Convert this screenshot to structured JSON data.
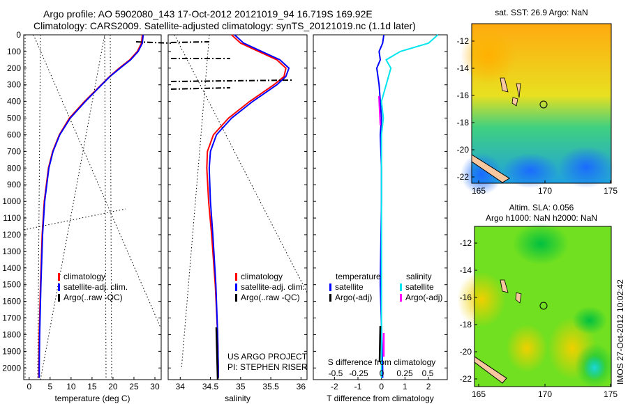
{
  "header": {
    "line1": "Argo profile: AO 5902080_143 17-Oct-2012 20121019_94 16.719S 169.92E",
    "line2": "Climatology: CARS2009. Satellite-adjusted climatology: synTS_20121019.nc (1.1d later)"
  },
  "colors": {
    "clim": "#ff0000",
    "sat": "#0000ff",
    "argo": "#000000",
    "sal_sat": "#00e5ee",
    "sal_argo": "#ff00ff"
  },
  "chart_data": [
    {
      "type": "line",
      "id": "temperature",
      "xlabel": "temperature (deg C)",
      "ylabel": "",
      "xlim": [
        -1.3,
        31.5
      ],
      "ylim": [
        2070,
        0
      ],
      "xticks": [
        "0",
        "5",
        "10",
        "15",
        "20",
        "25",
        "30"
      ],
      "xtick_values": [
        0,
        5,
        10,
        15,
        20,
        25,
        30
      ],
      "yticks": [
        "0",
        "100",
        "200",
        "300",
        "400",
        "500",
        "600",
        "700",
        "800",
        "900",
        "1000",
        "1100",
        "1200",
        "1300",
        "1400",
        "1500",
        "1600",
        "1700",
        "1800",
        "1900",
        "2000"
      ],
      "ytick_values": [
        0,
        100,
        200,
        300,
        400,
        500,
        600,
        700,
        800,
        900,
        1000,
        1100,
        1200,
        1300,
        1400,
        1500,
        1600,
        1700,
        1800,
        1900,
        2000
      ],
      "depth": [
        0,
        50,
        100,
        150,
        200,
        250,
        300,
        400,
        500,
        600,
        700,
        800,
        1000,
        1200,
        1500,
        1800,
        2000,
        2060
      ],
      "series": [
        {
          "name": "climatology",
          "values": [
            27,
            26.8,
            25.8,
            24,
            21.5,
            19.2,
            17.2,
            13.2,
            9.6,
            7.2,
            5.6,
            4.6,
            3.6,
            3.1,
            2.7,
            2.4,
            2.3,
            2.3
          ]
        },
        {
          "name": "satellite-adj. clim.",
          "values": [
            27.2,
            27,
            26,
            24.2,
            21.7,
            19.3,
            17.3,
            13.4,
            9.8,
            7.3,
            5.7,
            4.7,
            3.7,
            3.2,
            2.8,
            2.5,
            2.4,
            2.4
          ]
        },
        {
          "name": "Argo(..raw -QC)",
          "values": []
        }
      ],
      "legend": [
        "climatology",
        "satellite-adj. clim.",
        "Argo(..raw -QC)"
      ],
      "legend_placement": "bottom-center"
    },
    {
      "type": "line",
      "id": "salinity",
      "xlabel": "salinity",
      "xlim": [
        33.8,
        36.1
      ],
      "ylim": [
        2070,
        0
      ],
      "xticks": [
        "34",
        "34.5",
        "35",
        "35.5",
        "36"
      ],
      "xtick_values": [
        34,
        34.5,
        35,
        35.5,
        36
      ],
      "depth": [
        0,
        50,
        100,
        150,
        200,
        250,
        300,
        400,
        500,
        600,
        700,
        800,
        1000,
        1200,
        1500,
        1800,
        2000,
        2060
      ],
      "series": [
        {
          "name": "climatology",
          "values": [
            34.85,
            35.0,
            35.3,
            35.6,
            35.75,
            35.72,
            35.55,
            35.15,
            34.8,
            34.55,
            34.45,
            34.44,
            34.47,
            34.52,
            34.58,
            34.62,
            34.63,
            34.63
          ]
        },
        {
          "name": "satellite-adj. clim.",
          "values": [
            34.9,
            35.05,
            35.35,
            35.65,
            35.8,
            35.75,
            35.6,
            35.2,
            34.85,
            34.6,
            34.5,
            34.48,
            34.5,
            34.54,
            34.59,
            34.62,
            34.63,
            34.63
          ]
        },
        {
          "name": "Argo(..raw -QC)",
          "values": []
        }
      ],
      "legend": [
        "climatology",
        "satellite-adj. clim.",
        "Argo(..raw -QC)"
      ],
      "annotation": [
        "US ARGO PROJECT",
        "PI: STEPHEN RISER"
      ],
      "legend_placement": "bottom-right"
    },
    {
      "type": "line",
      "id": "difference",
      "xlabel": "T difference from climatology",
      "x2label": "S difference from climatology",
      "xlim": [
        -2.9,
        2.8
      ],
      "ylim": [
        2070,
        0
      ],
      "xticks": [
        "-2",
        "-1",
        "0",
        "1",
        "2"
      ],
      "xtick_values": [
        -2,
        -1,
        0,
        1,
        2
      ],
      "x2ticks": [
        "-0.5",
        "-0.25",
        "0",
        "0.25",
        "0.5"
      ],
      "depth": [
        0,
        50,
        100,
        150,
        200,
        300,
        400,
        500,
        600,
        800,
        1000,
        1500,
        2000,
        2060
      ],
      "series": [
        {
          "name": "temperature satellite",
          "values": [
            0.1,
            0.05,
            -0.1,
            -0.05,
            -0.2,
            -0.1,
            -0.05,
            0,
            -0.05,
            0,
            0,
            -0.05,
            0.05,
            0.05
          ]
        },
        {
          "name": "salinity satellite",
          "values": [
            0.6,
            0.5,
            0.2,
            0.05,
            0.1,
            0.05,
            0,
            0.02,
            0,
            0,
            0,
            0,
            0,
            0
          ]
        },
        {
          "name": "temperature Argo(-adj)",
          "values": []
        },
        {
          "name": "salinity Argo(-adj)",
          "values": []
        }
      ],
      "legend_headers": [
        "temperature",
        "salinity"
      ],
      "legend": [
        "satellite",
        "Argo(-adj)",
        "satellite",
        "Argo(-adj)"
      ]
    }
  ],
  "maps": [
    {
      "title": "sat. SST: 26.9 Argo: NaN",
      "xticks": [
        "165",
        "170",
        "175"
      ],
      "yticks": [
        "-12",
        "-14",
        "-16",
        "-18",
        "-20",
        "-22"
      ]
    },
    {
      "title1": "Altim. SLA: 0.056",
      "title2": "Argo h1000: NaN h2000: NaN",
      "xticks": [
        "165",
        "170",
        "175"
      ],
      "yticks": [
        "-12",
        "-14",
        "-16",
        "-18",
        "-20",
        "-22"
      ]
    }
  ],
  "footer": {
    "stamp": "IMOS 27-Oct-2012 10:02:42"
  }
}
